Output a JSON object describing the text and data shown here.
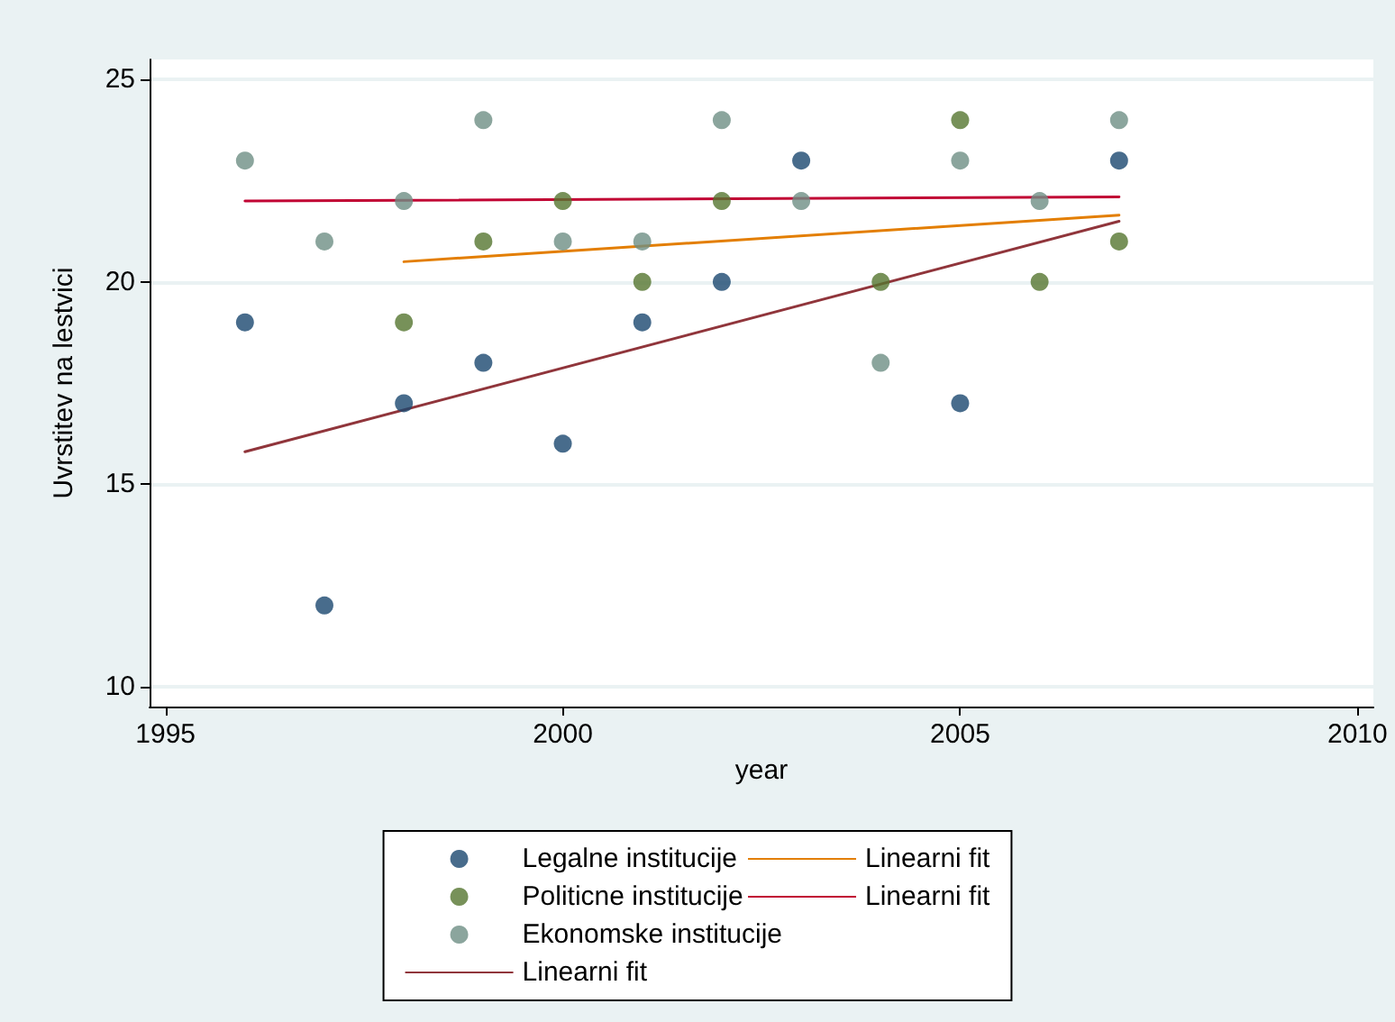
{
  "chart_data": {
    "type": "scatter",
    "xlabel": "year",
    "ylabel": "Uvrstitev na lestvici",
    "xlim": [
      1994.8,
      2010.2
    ],
    "xticks": [
      1995,
      2000,
      2005,
      2010
    ],
    "ylim": [
      9.5,
      25.5
    ],
    "yticks": [
      10,
      15,
      20,
      25
    ],
    "grid": "y",
    "legend": "bottom",
    "marker": "circle",
    "series": [
      {
        "name": "Legalne institucije",
        "color": "#1a476f",
        "x": [
          1996,
          1997,
          1998,
          1999,
          2000,
          2001,
          2002,
          2003,
          2005,
          2007
        ],
        "values": [
          19,
          12,
          17,
          18,
          16,
          19,
          20,
          23,
          17,
          23
        ]
      },
      {
        "name": "Politicne institucije",
        "color": "#55752f",
        "x": [
          1998,
          1999,
          2000,
          2001,
          2002,
          2004,
          2005,
          2006,
          2007
        ],
        "values": [
          19,
          21,
          22,
          20,
          22,
          20,
          24,
          20,
          21
        ]
      },
      {
        "name": "Ekonomske institucije",
        "color": "#6e8e84",
        "x": [
          1996,
          1997,
          1998,
          1999,
          2000,
          2001,
          2002,
          2003,
          2004,
          2005,
          2006,
          2007
        ],
        "values": [
          23,
          21,
          22,
          24,
          21,
          21,
          24,
          22,
          18,
          23,
          22,
          24
        ]
      },
      {
        "name": "Linearni fit",
        "type": "line",
        "marker": "none",
        "color": "#90353b",
        "x": [
          1996,
          2007
        ],
        "values": [
          15.8,
          21.5
        ]
      },
      {
        "name": "Linearni fit",
        "type": "line",
        "marker": "none",
        "color": "#e37e00",
        "x": [
          1998,
          2007
        ],
        "values": [
          20.5,
          21.65
        ]
      },
      {
        "name": "Linearni fit",
        "type": "line",
        "marker": "none",
        "color": "#c10534",
        "x": [
          1996,
          2007
        ],
        "values": [
          22.0,
          22.1
        ]
      }
    ]
  }
}
